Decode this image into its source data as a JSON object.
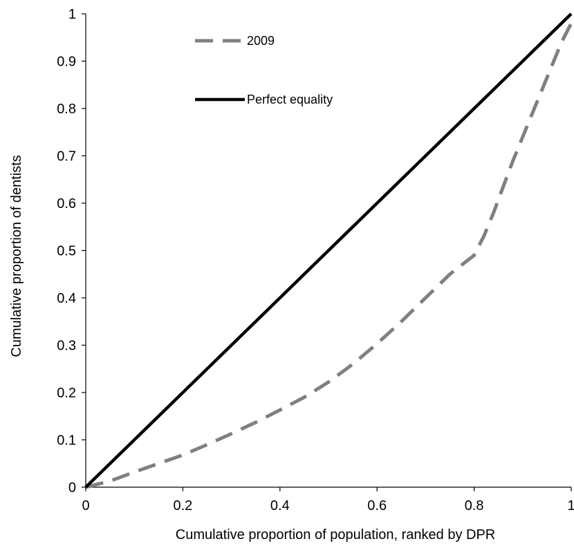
{
  "chart_data": {
    "type": "line",
    "title": "",
    "xlabel": "Cumulative proportion of population, ranked by DPR",
    "ylabel": "Cumulative proportion of dentists",
    "xlim": [
      0,
      1
    ],
    "ylim": [
      0,
      1
    ],
    "x_ticks": [
      "0",
      "0.2",
      "0.4",
      "0.6",
      "0.8",
      "1"
    ],
    "y_ticks": [
      "0",
      "0.1",
      "0.2",
      "0.3",
      "0.4",
      "0.5",
      "0.6",
      "0.7",
      "0.8",
      "0.9",
      "1"
    ],
    "grid": false,
    "legend_position": "top-left",
    "series": [
      {
        "name": "2009",
        "style": "dashed",
        "color": "#808080",
        "x": [
          0,
          0.05,
          0.1,
          0.15,
          0.2,
          0.25,
          0.3,
          0.35,
          0.4,
          0.45,
          0.5,
          0.55,
          0.6,
          0.65,
          0.7,
          0.75,
          0.8,
          0.82,
          0.84,
          0.86,
          0.88,
          0.9,
          0.92,
          0.94,
          0.96,
          0.98,
          1
        ],
        "y": [
          0,
          0.013,
          0.032,
          0.05,
          0.068,
          0.09,
          0.113,
          0.137,
          0.163,
          0.19,
          0.222,
          0.26,
          0.303,
          0.35,
          0.4,
          0.45,
          0.49,
          0.53,
          0.58,
          0.635,
          0.69,
          0.74,
          0.79,
          0.84,
          0.89,
          0.94,
          0.98
        ]
      },
      {
        "name": "Perfect equality",
        "style": "solid",
        "color": "#000000",
        "x": [
          0,
          1
        ],
        "y": [
          0,
          1
        ]
      }
    ]
  }
}
